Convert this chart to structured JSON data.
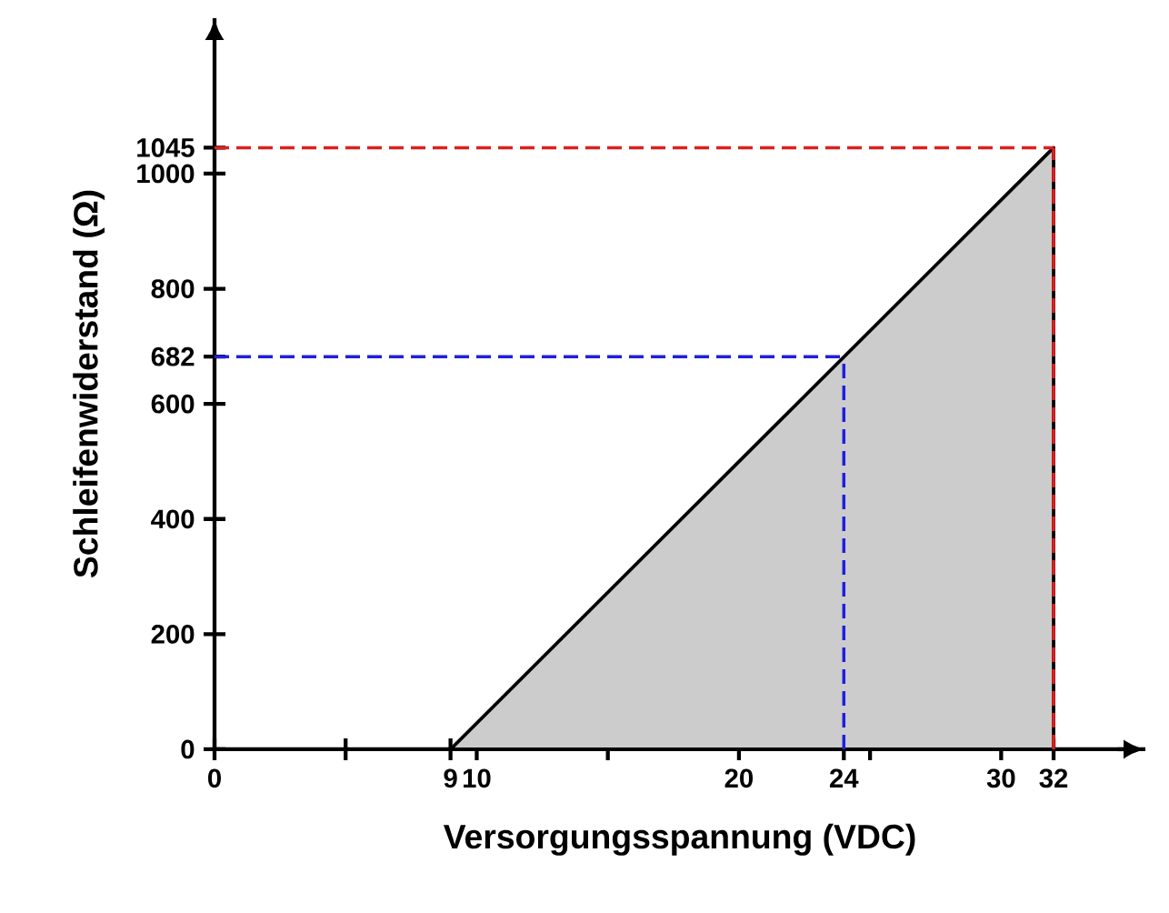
{
  "chart_data": {
    "type": "area",
    "xlabel": "Versorgungsspannung (VDC)",
    "ylabel": "Schleifenwiderstand (Ω)",
    "xlim": [
      0,
      35.5
    ],
    "ylim": [
      0,
      1270
    ],
    "xticks": [
      0,
      {
        "value": 5,
        "label": null
      },
      9,
      10,
      {
        "value": 15,
        "label": null
      },
      20,
      24,
      {
        "value": 25,
        "label": null
      },
      30,
      32
    ],
    "yticks": [
      0,
      200,
      400,
      600,
      682,
      800,
      1000,
      1045
    ],
    "series": [
      {
        "color": "#cccccc",
        "x": [
          9,
          32
        ],
        "values": [
          0,
          1045
        ]
      }
    ],
    "ref_lines": [
      {
        "axis": "y",
        "value": 682,
        "color": "#1f1fe0",
        "line_style": "dashed"
      },
      {
        "axis": "x",
        "value": 24,
        "color": "#1f1fe0",
        "line_style": "dashed"
      },
      {
        "axis": "y",
        "value": 1045,
        "color": "#e01f1f",
        "line_style": "dashed"
      },
      {
        "axis": "x",
        "value": 32,
        "color": "#e01f1f",
        "line_style": "dashed"
      }
    ],
    "grid": false
  }
}
